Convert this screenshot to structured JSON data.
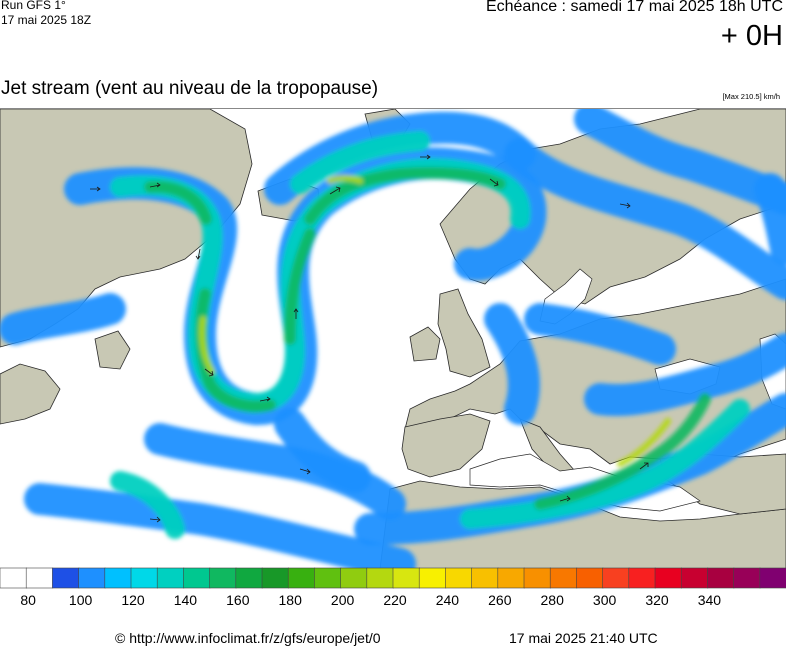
{
  "header": {
    "run": "Run GFS 1°",
    "run_date": "17 mai 2025 18Z",
    "forecast_time": "Echéance : samedi 17 mai 2025 18h UTC",
    "lead_time": "+ 0H",
    "title": "Jet stream (vent au niveau de la tropopause)",
    "max_label": "[Max 210.5] km/h"
  },
  "colors": {
    "land": "#c8c8b4",
    "sea": "#ffffff",
    "coast": "#2a2a2a"
  },
  "legend": {
    "unit": "km/h",
    "colors": [
      "#ffffff",
      "#ffffff",
      "#1e50e6",
      "#1e90ff",
      "#00c0ff",
      "#00d8e8",
      "#00d0c0",
      "#00c890",
      "#10b860",
      "#10a840",
      "#189828",
      "#38b010",
      "#60c010",
      "#90cc10",
      "#b4d810",
      "#d8e610",
      "#f8f000",
      "#f8d800",
      "#f8c000",
      "#f8a800",
      "#f89000",
      "#f87800",
      "#f86000",
      "#f84020",
      "#f82020",
      "#e80020",
      "#c80030",
      "#a80040",
      "#980058",
      "#800070"
    ],
    "tick_labels": [
      "80",
      "100",
      "120",
      "140",
      "160",
      "180",
      "200",
      "220",
      "240",
      "260",
      "280",
      "300",
      "320",
      "340"
    ]
  },
  "footer": {
    "url": "© http://www.infoclimat.fr/z/gfs/europe/jet/0",
    "timestamp": "17 mai 2025 21:40 UTC"
  }
}
